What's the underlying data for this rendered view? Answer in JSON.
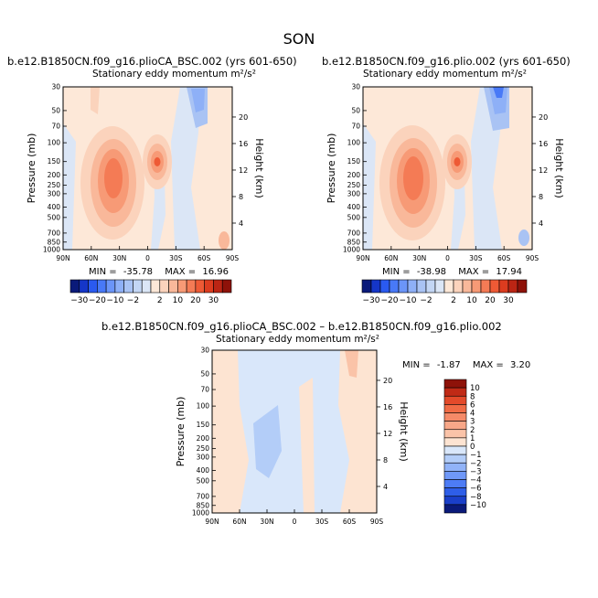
{
  "page_title": "SON",
  "chart_data": [
    {
      "type": "contour",
      "title": "b.e12.B1850CN.f09_g16.plioCA_BSC.002 (yrs 601-650)",
      "subtitle": "Stationary eddy momentum",
      "units": "m²/s²",
      "xlabel": "",
      "ylabel": "Pressure (mb)",
      "y2label": "Height (km)",
      "x_ticks": [
        "90N",
        "60N",
        "30N",
        "0",
        "30S",
        "60S",
        "90S"
      ],
      "y_ticks": [
        "30",
        "50",
        "70",
        "100",
        "150",
        "200",
        "250",
        "300",
        "400",
        "500",
        "700",
        "850",
        "1000"
      ],
      "y2_ticks": [
        "4",
        "8",
        "12",
        "16",
        "20"
      ],
      "min_label": "MIN =",
      "min": "-35.78",
      "max_label": "MAX =",
      "max": "16.96",
      "features": [
        {
          "lat": 30,
          "p": 200,
          "value": 15
        },
        {
          "lat": -8,
          "p": 150,
          "value": 12
        },
        {
          "lat": -55,
          "p": 45,
          "value": -6
        },
        {
          "lat": -75,
          "p": 800,
          "value": 4
        }
      ]
    },
    {
      "type": "contour",
      "title": "b.e12.B1850CN.f09_g16.plio.002 (yrs 601-650)",
      "subtitle": "Stationary eddy momentum",
      "units": "m²/s²",
      "xlabel": "",
      "ylabel": "Pressure (mb)",
      "y2label": "Height (km)",
      "x_ticks": [
        "90N",
        "60N",
        "30N",
        "0",
        "30S",
        "60S",
        "90S"
      ],
      "y_ticks": [
        "30",
        "50",
        "70",
        "100",
        "150",
        "200",
        "250",
        "300",
        "400",
        "500",
        "700",
        "850",
        "1000"
      ],
      "y2_ticks": [
        "4",
        "8",
        "12",
        "16",
        "20"
      ],
      "min_label": "MIN =",
      "min": "-38.98",
      "max_label": "MAX =",
      "max": "17.94",
      "features": [
        {
          "lat": 30,
          "p": 200,
          "value": 16
        },
        {
          "lat": -8,
          "p": 150,
          "value": 13
        },
        {
          "lat": -55,
          "p": 40,
          "value": -8
        },
        {
          "lat": -75,
          "p": 800,
          "value": 3
        }
      ]
    },
    {
      "type": "contour",
      "title": "b.e12.B1850CN.f09_g16.plioCA_BSC.002 – b.e12.B1850CN.f09_g16.plio.002",
      "subtitle": "Stationary eddy momentum",
      "units": "m²/s²",
      "xlabel": "",
      "ylabel": "Pressure (mb)",
      "y2label": "Height (km)",
      "x_ticks": [
        "90N",
        "60N",
        "30N",
        "0",
        "30S",
        "60S",
        "90S"
      ],
      "y_ticks": [
        "30",
        "50",
        "70",
        "100",
        "150",
        "200",
        "250",
        "300",
        "400",
        "500",
        "700",
        "850",
        "1000"
      ],
      "y2_ticks": [
        "4",
        "8",
        "12",
        "16",
        "20"
      ],
      "min_label": "MIN =",
      "min": "-1.87",
      "max_label": "MAX =",
      "max": "3.20",
      "features": [
        {
          "lat": 25,
          "p": 250,
          "value": -2
        },
        {
          "lat": -60,
          "p": 40,
          "value": 2
        }
      ]
    }
  ],
  "colorbar_main": {
    "labels": [
      "−30",
      "−20",
      "−10",
      "−2",
      "2",
      "10",
      "20",
      "30"
    ],
    "colors": [
      "#0a1a7a",
      "#1536c8",
      "#2a5af0",
      "#4879f7",
      "#6b95f8",
      "#8eb0f7",
      "#a9c3f4",
      "#c3d6f4",
      "#dbe6f6",
      "#fde8d8",
      "#fbd3bc",
      "#f9b89a",
      "#f79a76",
      "#f47b55",
      "#ee5a35",
      "#dc3c1f",
      "#bb2514",
      "#8e1209"
    ]
  },
  "colorbar_diff": {
    "labels": [
      "10",
      "8",
      "6",
      "4",
      "3",
      "2",
      "1",
      "0",
      "−1",
      "−2",
      "−3",
      "−4",
      "−6",
      "−8",
      "−10"
    ],
    "colors": [
      "#8e1209",
      "#c02a16",
      "#e34a2a",
      "#f06b45",
      "#f58a68",
      "#f8a788",
      "#fac3a8",
      "#fde4d2",
      "#d9e7fa",
      "#b3cdf8",
      "#91b3f8",
      "#6f98f8",
      "#4d7cf5",
      "#2e5ee8",
      "#1a3fc9",
      "#0a1a7a"
    ]
  }
}
